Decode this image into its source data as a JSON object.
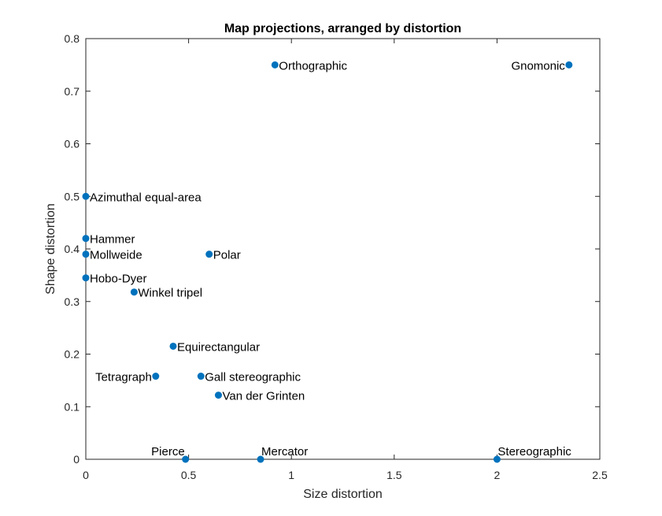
{
  "chart_data": {
    "type": "scatter",
    "title": "Map projections, arranged by distortion",
    "xlabel": "Size distortion",
    "ylabel": "Shape distortion",
    "xlim": [
      0,
      2.5
    ],
    "ylim": [
      0,
      0.8
    ],
    "xticks": [
      0,
      0.5,
      1,
      1.5,
      2,
      2.5
    ],
    "xtick_labels": [
      "0",
      "0.5",
      "1",
      "1.5",
      "2",
      "2.5"
    ],
    "yticks": [
      0,
      0.1,
      0.2,
      0.3,
      0.4,
      0.5,
      0.6,
      0.7,
      0.8
    ],
    "ytick_labels": [
      "0",
      "0.1",
      "0.2",
      "0.3",
      "0.4",
      "0.5",
      "0.6",
      "0.7",
      "0.8"
    ],
    "grid": false,
    "marker_color": "#0072BD",
    "points": [
      {
        "label": "Orthographic",
        "x": 0.92,
        "y": 0.75,
        "label_side": "right"
      },
      {
        "label": "Gnomonic",
        "x": 2.35,
        "y": 0.75,
        "label_side": "left"
      },
      {
        "label": "Azimuthal equal-area",
        "x": 0.0,
        "y": 0.5,
        "label_side": "right"
      },
      {
        "label": "Hammer",
        "x": 0.0,
        "y": 0.42,
        "label_side": "right"
      },
      {
        "label": "Mollweide",
        "x": 0.0,
        "y": 0.39,
        "label_side": "right"
      },
      {
        "label": "Polar",
        "x": 0.6,
        "y": 0.39,
        "label_side": "right"
      },
      {
        "label": "Hobo-Dyer",
        "x": 0.0,
        "y": 0.345,
        "label_side": "right"
      },
      {
        "label": "Winkel tripel",
        "x": 0.235,
        "y": 0.318,
        "label_side": "right"
      },
      {
        "label": "Equirectangular",
        "x": 0.425,
        "y": 0.215,
        "label_side": "right"
      },
      {
        "label": "Tetragraph",
        "x": 0.34,
        "y": 0.158,
        "label_side": "left"
      },
      {
        "label": "Gall stereographic",
        "x": 0.56,
        "y": 0.158,
        "label_side": "right"
      },
      {
        "label": "Van der Grinten",
        "x": 0.645,
        "y": 0.122,
        "label_side": "right"
      },
      {
        "label": "Pierce",
        "x": 0.485,
        "y": 0.0,
        "label_side": "above-left"
      },
      {
        "label": "Mercator",
        "x": 0.85,
        "y": 0.0,
        "label_side": "above-right"
      },
      {
        "label": "Stereographic",
        "x": 2.0,
        "y": 0.0,
        "label_side": "above-right"
      }
    ]
  }
}
